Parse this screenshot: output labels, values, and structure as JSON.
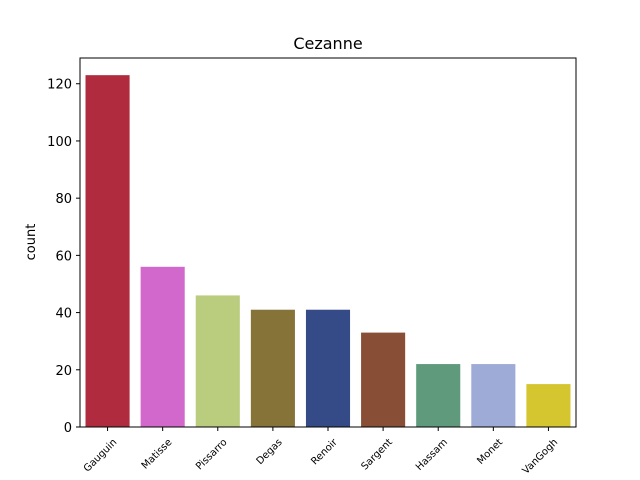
{
  "chart_data": {
    "type": "bar",
    "title": "Cezanne",
    "xlabel": "",
    "ylabel": "count",
    "categories": [
      "Gauguin",
      "Matisse",
      "Pissarro",
      "Degas",
      "Renoir",
      "Sargent",
      "Hassam",
      "Monet",
      "VanGogh"
    ],
    "values": [
      123,
      56,
      46,
      41,
      41,
      33,
      22,
      22,
      15
    ],
    "colors": [
      "#af2b3d",
      "#d267cc",
      "#bacc7e",
      "#857338",
      "#354b88",
      "#894f36",
      "#5f9a7c",
      "#9eabd6",
      "#d5c62f"
    ],
    "ylim": [
      0,
      129
    ],
    "yticks": [
      0,
      20,
      40,
      60,
      80,
      100,
      120
    ],
    "grid": false,
    "legend": "none"
  }
}
